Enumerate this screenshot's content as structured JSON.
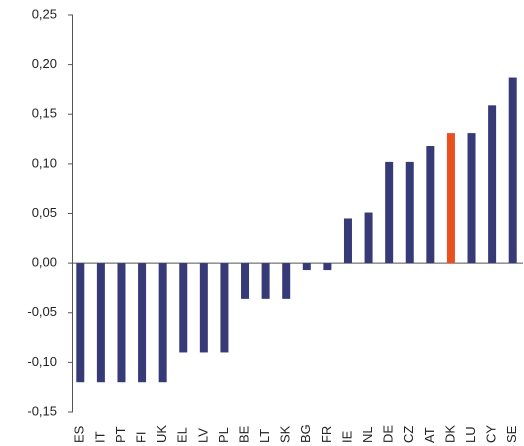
{
  "chart_data": {
    "type": "bar",
    "categories": [
      "ES",
      "IT",
      "PT",
      "FI",
      "UK",
      "EL",
      "LV",
      "PL",
      "BE",
      "LT",
      "SK",
      "BG",
      "FR",
      "IE",
      "NL",
      "DE",
      "CZ",
      "AT",
      "DK",
      "LU",
      "CY",
      "SE"
    ],
    "values": [
      -0.12,
      -0.12,
      -0.12,
      -0.12,
      -0.12,
      -0.09,
      -0.09,
      -0.09,
      -0.036,
      -0.036,
      -0.036,
      -0.007,
      -0.007,
      0.045,
      0.051,
      0.102,
      0.102,
      0.118,
      0.131,
      0.131,
      0.159,
      0.187
    ],
    "colors": [
      "#363b78",
      "#363b78",
      "#363b78",
      "#363b78",
      "#363b78",
      "#363b78",
      "#363b78",
      "#363b78",
      "#363b78",
      "#363b78",
      "#363b78",
      "#363b78",
      "#363b78",
      "#363b78",
      "#363b78",
      "#363b78",
      "#363b78",
      "#363b78",
      "#e8501e",
      "#363b78",
      "#363b78",
      "#363b78"
    ],
    "ylim": [
      -0.15,
      0.25
    ],
    "yticks": [
      {
        "value": -0.15,
        "label": "-0,15"
      },
      {
        "value": -0.1,
        "label": "-0,10"
      },
      {
        "value": -0.05,
        "label": "-0,05"
      },
      {
        "value": 0,
        "label": "0,00"
      },
      {
        "value": 0.05,
        "label": "0,05"
      },
      {
        "value": 0.1,
        "label": "0,10"
      },
      {
        "value": 0.15,
        "label": "0,15"
      },
      {
        "value": 0.2,
        "label": "0,20"
      },
      {
        "value": 0.25,
        "label": "0,25"
      }
    ],
    "grid": false
  }
}
